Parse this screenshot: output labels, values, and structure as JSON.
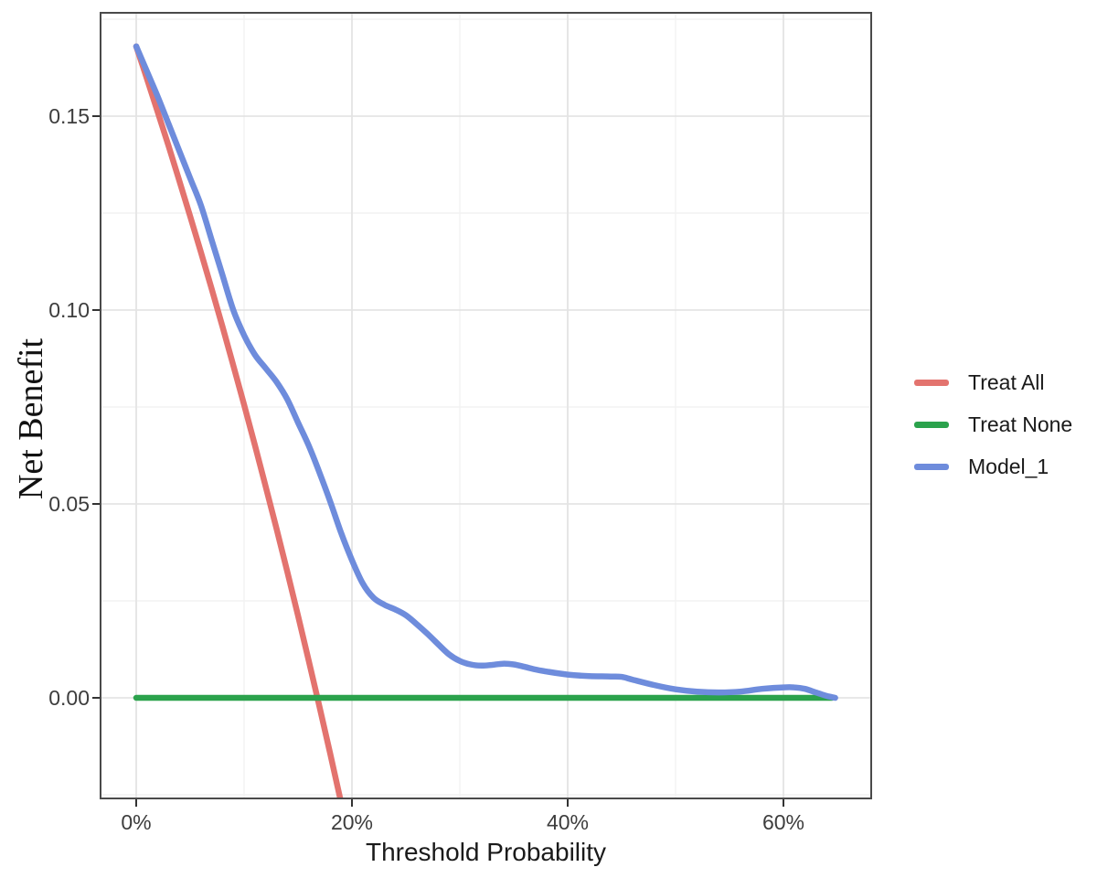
{
  "figure": {
    "background": "#ffffff",
    "panel_border_color": "#4a4a4a",
    "grid_major_color": "#e4e4e4",
    "grid_minor_color": "#f2f2f2",
    "tick_mark_color": "#333333"
  },
  "chart_data": {
    "type": "line",
    "title": "",
    "xlabel": "Threshold Probability",
    "ylabel": "Net Benefit",
    "x_unit": "percent",
    "xlim": [
      -3.3,
      68.1
    ],
    "ylim": [
      -0.026,
      0.177
    ],
    "grid": true,
    "legend_position": "right",
    "x_ticks": [
      {
        "value": 0,
        "label": "0%"
      },
      {
        "value": 20,
        "label": "20%"
      },
      {
        "value": 40,
        "label": "40%"
      },
      {
        "value": 60,
        "label": "60%"
      }
    ],
    "y_ticks": [
      {
        "value": 0.0,
        "label": "0.00"
      },
      {
        "value": 0.05,
        "label": "0.05"
      },
      {
        "value": 0.1,
        "label": "0.10"
      },
      {
        "value": 0.15,
        "label": "0.15"
      }
    ],
    "x_minor_ticks": [
      10,
      30,
      50
    ],
    "y_minor_ticks": [
      -0.025,
      0.025,
      0.075,
      0.125,
      0.175
    ],
    "series": [
      {
        "name": "Treat All",
        "color": "#e3736e",
        "points": [
          [
            0,
            0.168
          ],
          [
            1,
            0.1596
          ],
          [
            2,
            0.151
          ],
          [
            3,
            0.1423
          ],
          [
            4,
            0.1333
          ],
          [
            5,
            0.1242
          ],
          [
            6,
            0.1149
          ],
          [
            7,
            0.1054
          ],
          [
            8,
            0.0957
          ],
          [
            9,
            0.0857
          ],
          [
            10,
            0.0756
          ],
          [
            11,
            0.0652
          ],
          [
            12,
            0.0545
          ],
          [
            13,
            0.0437
          ],
          [
            14,
            0.0326
          ],
          [
            15,
            0.0212
          ],
          [
            16,
            0.0095
          ],
          [
            17,
            -0.0024
          ],
          [
            18,
            -0.0146
          ],
          [
            19,
            -0.0271
          ]
        ]
      },
      {
        "name": "Treat None",
        "color": "#2ba24c",
        "points": [
          [
            0,
            0.0
          ],
          [
            64.5,
            0.0
          ]
        ]
      },
      {
        "name": "Model_1",
        "color": "#6e8cdc",
        "points": [
          [
            0,
            0.168
          ],
          [
            1,
            0.1615
          ],
          [
            2,
            0.155
          ],
          [
            3,
            0.148
          ],
          [
            4,
            0.141
          ],
          [
            5,
            0.134
          ],
          [
            6,
            0.127
          ],
          [
            7,
            0.118
          ],
          [
            8,
            0.109
          ],
          [
            9,
            0.1
          ],
          [
            10,
            0.0935
          ],
          [
            11,
            0.0885
          ],
          [
            12,
            0.085
          ],
          [
            13,
            0.0815
          ],
          [
            14,
            0.077
          ],
          [
            15,
            0.071
          ],
          [
            16,
            0.065
          ],
          [
            17,
            0.058
          ],
          [
            18,
            0.0505
          ],
          [
            19,
            0.0425
          ],
          [
            20,
            0.0355
          ],
          [
            21,
            0.0295
          ],
          [
            22,
            0.0258
          ],
          [
            23,
            0.024
          ],
          [
            24,
            0.0228
          ],
          [
            25,
            0.0213
          ],
          [
            26,
            0.019
          ],
          [
            27,
            0.0165
          ],
          [
            28,
            0.0138
          ],
          [
            29,
            0.0112
          ],
          [
            30,
            0.0095
          ],
          [
            31,
            0.0086
          ],
          [
            32,
            0.0083
          ],
          [
            33,
            0.0085
          ],
          [
            34,
            0.0088
          ],
          [
            35,
            0.0086
          ],
          [
            36,
            0.008
          ],
          [
            37,
            0.0073
          ],
          [
            38,
            0.0068
          ],
          [
            40,
            0.006
          ],
          [
            42,
            0.0056
          ],
          [
            44,
            0.0055
          ],
          [
            45,
            0.0054
          ],
          [
            46,
            0.0047
          ],
          [
            48,
            0.0033
          ],
          [
            50,
            0.0022
          ],
          [
            52,
            0.0016
          ],
          [
            54,
            0.0014
          ],
          [
            56,
            0.0016
          ],
          [
            58,
            0.0023
          ],
          [
            60,
            0.0027
          ],
          [
            61,
            0.0027
          ],
          [
            62,
            0.0023
          ],
          [
            63,
            0.0014
          ],
          [
            64,
            0.0005
          ],
          [
            64.8,
            0.0
          ]
        ]
      }
    ]
  },
  "legend": {
    "items": [
      {
        "label": "Treat All",
        "color": "#e3736e"
      },
      {
        "label": "Treat None",
        "color": "#2ba24c"
      },
      {
        "label": "Model_1",
        "color": "#6e8cdc"
      }
    ]
  }
}
